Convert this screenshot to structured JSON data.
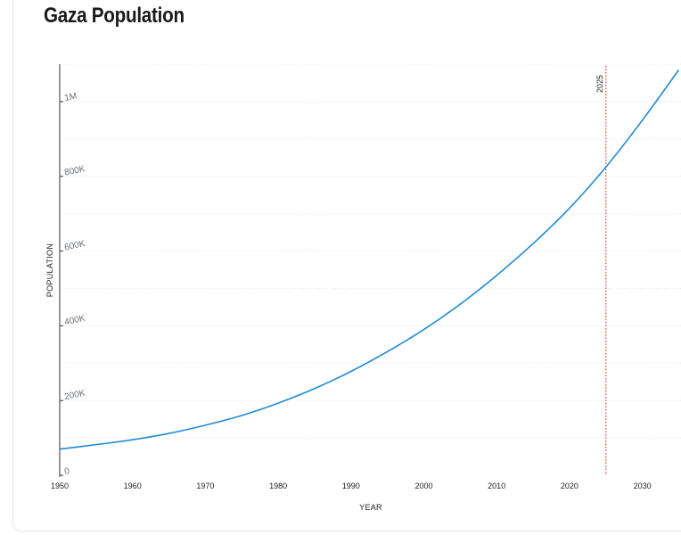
{
  "chart_data": {
    "type": "line",
    "title": "Gaza Population",
    "xlabel": "YEAR",
    "ylabel": "POPULATION",
    "xlim": [
      1950,
      2035
    ],
    "ylim": [
      0,
      1100000
    ],
    "x_ticks": [
      "1950",
      "1960",
      "1970",
      "1980",
      "1990",
      "2000",
      "2010",
      "2020",
      "2030"
    ],
    "y_ticks": [
      {
        "value": 0,
        "label": "0"
      },
      {
        "value": 200000,
        "label": "200K"
      },
      {
        "value": 400000,
        "label": "400K"
      },
      {
        "value": 600000,
        "label": "600K"
      },
      {
        "value": 800000,
        "label": "800K"
      },
      {
        "value": 1000000,
        "label": "1M"
      }
    ],
    "grid": true,
    "series": [
      {
        "color": "#1f8bd1",
        "x": [
          1950,
          1955,
          1960,
          1965,
          1970,
          1975,
          1980,
          1985,
          1990,
          1995,
          2000,
          2005,
          2010,
          2015,
          2020,
          2025,
          2030,
          2035
        ],
        "y": [
          70000,
          82000,
          95000,
          112000,
          134000,
          160000,
          193000,
          232000,
          278000,
          331000,
          390000,
          458000,
          535000,
          620000,
          715000,
          825000,
          950000,
          1085000
        ]
      }
    ],
    "annotations": [
      {
        "type": "vline",
        "x": 2025,
        "label": "2025",
        "color": "#e03a3a"
      }
    ]
  }
}
